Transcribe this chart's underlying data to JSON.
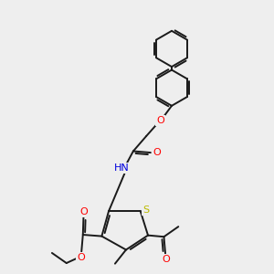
{
  "background_color": "#eeeeee",
  "bond_color": "#1a1a1a",
  "atom_colors": {
    "O": "#ff0000",
    "N": "#0000dd",
    "S": "#bbbb00",
    "C": "#1a1a1a",
    "H": "#708090"
  },
  "line_width": 1.4,
  "dbo": 0.08,
  "figsize": [
    3.0,
    3.0
  ],
  "dpi": 100,
  "xlim": [
    -0.5,
    5.5
  ],
  "ylim": [
    -3.5,
    5.8
  ]
}
